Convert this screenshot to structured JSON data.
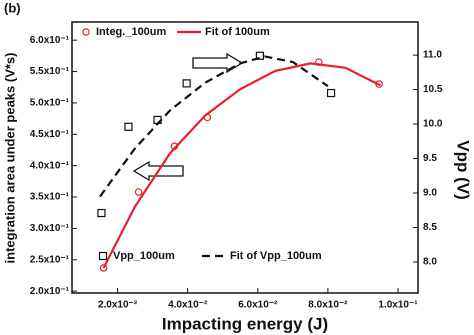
{
  "chart_data": {
    "type": "scatter",
    "title": "(b)",
    "xlabel": "Impacting energy (J)",
    "ylabel": "integration area under peaks (V*s)",
    "y2label": "Vpp (V)",
    "xlim": [
      0.007,
      0.1057
    ],
    "ylim": [
      0.197,
      0.629
    ],
    "y2lim": [
      7.55,
      11.48
    ],
    "xticks": [
      {
        "value": 0.02,
        "label": "2.0x10⁻²"
      },
      {
        "value": 0.04,
        "label": "4.0x10⁻²"
      },
      {
        "value": 0.06,
        "label": "6.0x10⁻²"
      },
      {
        "value": 0.08,
        "label": "8.0x10⁻²"
      },
      {
        "value": 0.1,
        "label": "1.0x10⁻¹"
      }
    ],
    "yticks": [
      {
        "value": 0.2,
        "label": "2.0x10⁻¹"
      },
      {
        "value": 0.25,
        "label": "2.5x10⁻¹"
      },
      {
        "value": 0.3,
        "label": "3.0x10⁻¹"
      },
      {
        "value": 0.35,
        "label": "3.5x10⁻¹"
      },
      {
        "value": 0.4,
        "label": "4.0x10⁻¹"
      },
      {
        "value": 0.45,
        "label": "4.5x10⁻¹"
      },
      {
        "value": 0.5,
        "label": "5.0x10⁻¹"
      },
      {
        "value": 0.55,
        "label": "5.5x10⁻¹"
      },
      {
        "value": 0.6,
        "label": "6.0x10⁻¹"
      }
    ],
    "y2ticks": [
      {
        "value": 8,
        "label": "8.0"
      },
      8.5,
      {
        "value": 9,
        "label": "9.0"
      },
      9.5,
      {
        "value": 10,
        "label": "10.0"
      },
      10.5,
      {
        "value": 11,
        "label": "11.0"
      }
    ],
    "series": [
      {
        "name": "Integ._100um",
        "color": "#e8202a",
        "marker": "circle",
        "x": [
          0.016,
          0.026,
          0.0362,
          0.0456,
          0.0774,
          0.0946
        ],
        "values": [
          0.237,
          0.358,
          0.431,
          0.477,
          0.565,
          0.53
        ]
      },
      {
        "name": "Fit of 100um",
        "color": "#e8202a",
        "marker": "line",
        "x": [
          0.016,
          0.025,
          0.035,
          0.045,
          0.055,
          0.065,
          0.075,
          0.085,
          0.095
        ],
        "values": [
          0.237,
          0.335,
          0.42,
          0.48,
          0.522,
          0.551,
          0.563,
          0.556,
          0.528
        ]
      },
      {
        "name": "Vpp_100um",
        "color": "#111111",
        "marker": "square",
        "axis": "y2",
        "x": [
          0.0154,
          0.0231,
          0.0314,
          0.0397,
          0.0606,
          0.0809
        ],
        "values": [
          8.71,
          9.96,
          10.06,
          10.59,
          10.99,
          10.45
        ]
      },
      {
        "name": "Fit of  Vpp_100um",
        "color": "#111111",
        "marker": "dash",
        "axis": "y2",
        "x": [
          0.015,
          0.025,
          0.035,
          0.045,
          0.055,
          0.062,
          0.07,
          0.08
        ],
        "values": [
          8.95,
          9.65,
          10.2,
          10.6,
          10.88,
          10.98,
          10.9,
          10.55
        ]
      }
    ]
  }
}
